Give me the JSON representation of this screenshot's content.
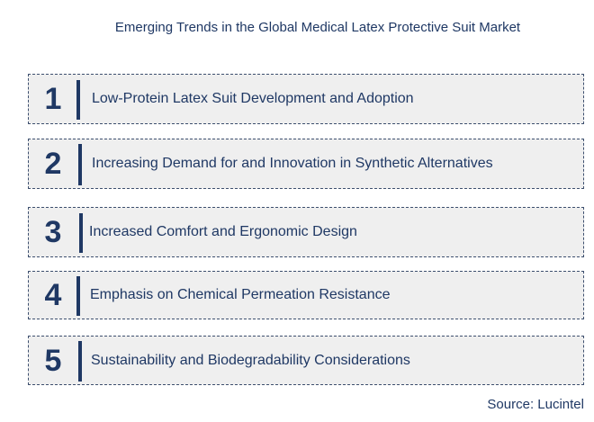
{
  "title": "Emerging Trends in the Global Medical Latex Protective Suit Market",
  "trends": [
    {
      "number": "1",
      "label": "Low-Protein Latex Suit Development and Adoption"
    },
    {
      "number": "2",
      "label": "Increasing Demand for and Innovation in Synthetic Alternatives"
    },
    {
      "number": "3",
      "label": "Increased Comfort and Ergonomic Design"
    },
    {
      "number": "4",
      "label": "Emphasis on Chemical Permeation Resistance"
    },
    {
      "number": "5",
      "label": "Sustainability and Biodegradability Considerations"
    }
  ],
  "source": "Source: Lucintel",
  "colors": {
    "text": "#1f3864",
    "box_fill": "#efefef",
    "box_border": "#3d4f6e"
  }
}
